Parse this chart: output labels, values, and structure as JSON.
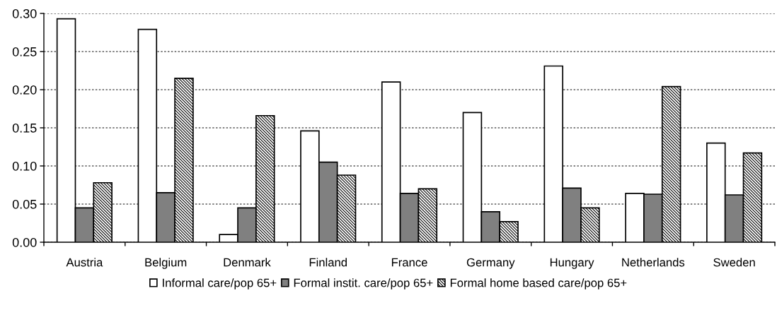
{
  "chart_data": {
    "type": "bar",
    "categories": [
      "Austria",
      "Belgium",
      "Denmark",
      "Finland",
      "France",
      "Germany",
      "Hungary",
      "Netherlands",
      "Sweden"
    ],
    "series": [
      {
        "name": "Informal care/pop 65+",
        "color": "#ffffff",
        "values": [
          0.293,
          0.279,
          0.01,
          0.146,
          0.21,
          0.17,
          0.231,
          0.064,
          0.13
        ]
      },
      {
        "name": "Formal instit. care/pop 65+",
        "color": "#808080",
        "values": [
          0.045,
          0.065,
          0.045,
          0.105,
          0.064,
          0.04,
          0.071,
          0.063,
          0.062
        ]
      },
      {
        "name": "Formal home based care/pop 65+",
        "color": "#000000",
        "values": [
          0.078,
          0.215,
          0.166,
          0.088,
          0.07,
          0.027,
          0.045,
          0.204,
          0.117
        ]
      }
    ],
    "ylim": [
      0,
      0.3
    ],
    "yticks": [
      {
        "value": 0,
        "label": "0.00"
      },
      0.05,
      {
        "value": 0.1,
        "label": "0.10"
      },
      0.15,
      {
        "value": 0.2,
        "label": "0.20"
      },
      0.25,
      {
        "value": 0.3,
        "label": "0.30"
      }
    ],
    "grid": "y",
    "legend": "bottom"
  }
}
